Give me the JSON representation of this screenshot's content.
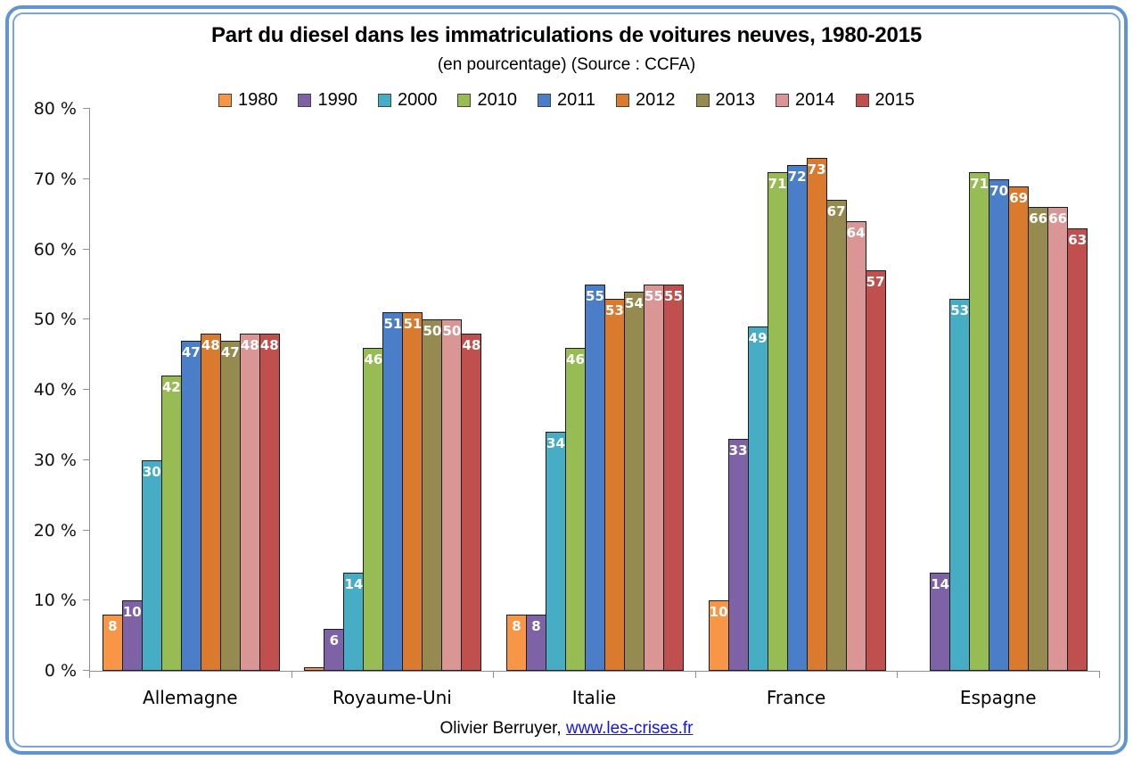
{
  "title": "Part du diesel dans les immatriculations de voitures neuves, 1980-2015",
  "subtitle": "(en pourcentage) (Source : CCFA)",
  "footer": {
    "text": "Olivier Berruyer,",
    "link": "www.les-crises.fr"
  },
  "colors": {
    "frame_blue": "#6095D1",
    "axis_gray": "#909090",
    "bar_outline": "#1c1c1c",
    "bar_label_white": "#ffffff",
    "link_blue": "#1414E8"
  },
  "chart_data": {
    "type": "bar",
    "title": "Part du diesel dans les immatriculations de voitures neuves, 1980-2015",
    "subtitle": "(en pourcentage) (Source : CCFA)",
    "categories": [
      "Allemagne",
      "Royaume-Uni",
      "Italie",
      "France",
      "Espagne"
    ],
    "series": [
      {
        "name": "1980",
        "color": "#F79646",
        "values": [
          8,
          0.5,
          8,
          10,
          null
        ]
      },
      {
        "name": "1990",
        "color": "#7D63A5",
        "values": [
          10,
          6,
          8,
          33,
          14
        ]
      },
      {
        "name": "2000",
        "color": "#47ADC5",
        "values": [
          30,
          14,
          34,
          49,
          53
        ]
      },
      {
        "name": "2010",
        "color": "#97BC54",
        "values": [
          42,
          46,
          46,
          71,
          71
        ]
      },
      {
        "name": "2011",
        "color": "#4A7EC8",
        "values": [
          47,
          51,
          55,
          72,
          70
        ]
      },
      {
        "name": "2012",
        "color": "#DA7A2E",
        "values": [
          48,
          51,
          53,
          73,
          69
        ]
      },
      {
        "name": "2013",
        "color": "#958B51",
        "values": [
          47,
          50,
          54,
          67,
          66
        ]
      },
      {
        "name": "2014",
        "color": "#D99694",
        "values": [
          48,
          50,
          55,
          64,
          66
        ]
      },
      {
        "name": "2015",
        "color": "#C0504D",
        "values": [
          48,
          48,
          55,
          57,
          63
        ]
      }
    ],
    "ylim": [
      0,
      80
    ],
    "yticks": [
      0,
      10,
      20,
      30,
      40,
      50,
      60,
      70,
      80
    ],
    "ytick_format": "{v} %",
    "grid": false,
    "legend_position": "top",
    "data_labels": "white bold, inside end; hidden when value < 1",
    "xlabel": "",
    "ylabel": ""
  }
}
